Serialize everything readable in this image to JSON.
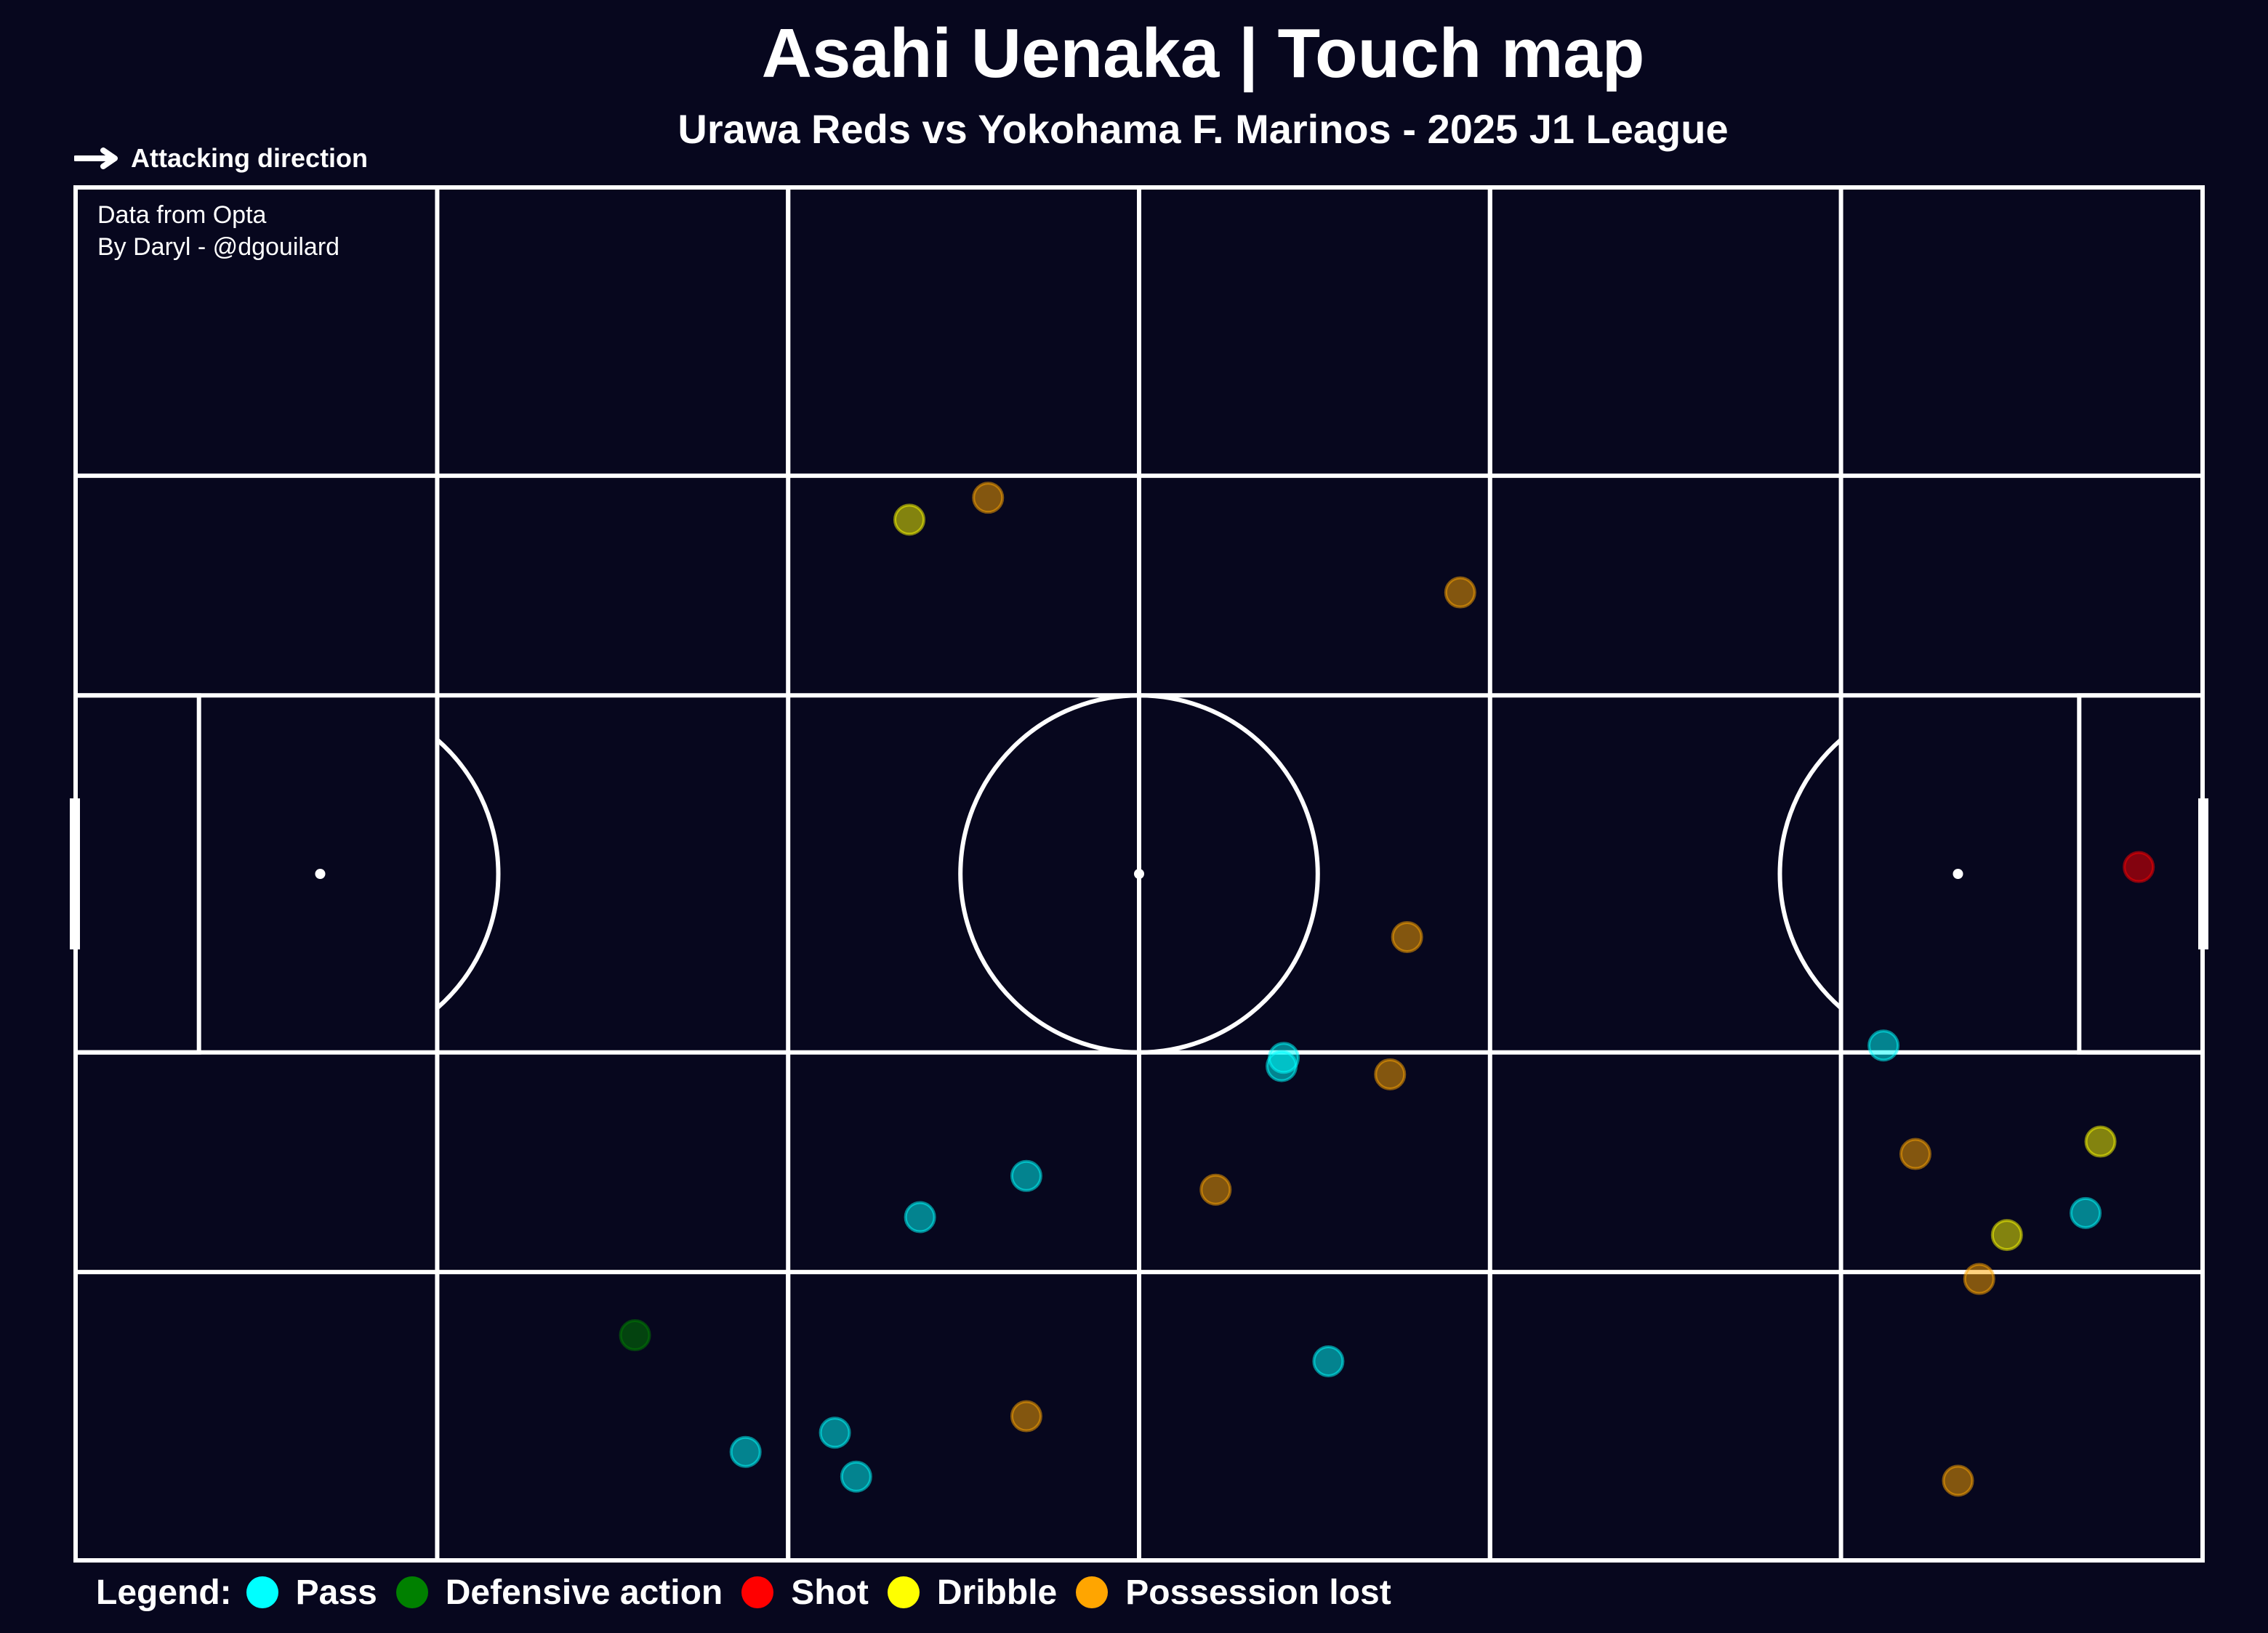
{
  "header": {
    "title": "Asahi Uenaka | Touch map",
    "subtitle": "Urawa Reds vs Yokohama F. Marinos - 2025 J1 League",
    "attacking_direction": "Attacking direction"
  },
  "credits": {
    "line1": "Data from Opta",
    "line2": "By Daryl - @dgouilard"
  },
  "legend": {
    "title": "Legend:",
    "items": [
      {
        "label": "Pass",
        "color": "#00ffff"
      },
      {
        "label": "Defensive action",
        "color": "#008000"
      },
      {
        "label": "Shot",
        "color": "#ff0000"
      },
      {
        "label": "Dribble",
        "color": "#ffff00"
      },
      {
        "label": "Possession lost",
        "color": "#ffa500"
      }
    ]
  },
  "chart_data": {
    "type": "scatter",
    "xlim": [
      0,
      100
    ],
    "ylim": [
      0,
      100
    ],
    "pitch_color": "#07071e",
    "line_color": "#ffffff",
    "series": [
      {
        "name": "Pass",
        "color": "#00ffff",
        "points": [
          {
            "x": 85.0,
            "y": 37.5
          },
          {
            "x": 94.5,
            "y": 25.3
          },
          {
            "x": 56.7,
            "y": 36.0
          },
          {
            "x": 56.8,
            "y": 36.6
          },
          {
            "x": 44.7,
            "y": 28.0
          },
          {
            "x": 39.7,
            "y": 25.0
          },
          {
            "x": 58.9,
            "y": 14.5
          },
          {
            "x": 35.7,
            "y": 9.3
          },
          {
            "x": 36.7,
            "y": 6.1
          },
          {
            "x": 31.5,
            "y": 7.9
          }
        ]
      },
      {
        "name": "Defensive action",
        "color": "#008000",
        "points": [
          {
            "x": 26.3,
            "y": 16.4
          }
        ]
      },
      {
        "name": "Shot",
        "color": "#ff0000",
        "points": [
          {
            "x": 97.0,
            "y": 50.5
          }
        ]
      },
      {
        "name": "Dribble",
        "color": "#ffff00",
        "points": [
          {
            "x": 39.2,
            "y": 75.8
          },
          {
            "x": 95.2,
            "y": 30.5
          },
          {
            "x": 90.8,
            "y": 23.7
          }
        ]
      },
      {
        "name": "Possession lost",
        "color": "#ffa500",
        "points": [
          {
            "x": 42.9,
            "y": 77.4
          },
          {
            "x": 65.1,
            "y": 70.5
          },
          {
            "x": 62.6,
            "y": 45.4
          },
          {
            "x": 61.8,
            "y": 35.4
          },
          {
            "x": 53.6,
            "y": 27.0
          },
          {
            "x": 86.5,
            "y": 29.6
          },
          {
            "x": 89.5,
            "y": 20.5
          },
          {
            "x": 44.7,
            "y": 10.5
          },
          {
            "x": 88.5,
            "y": 5.8
          }
        ]
      }
    ]
  }
}
